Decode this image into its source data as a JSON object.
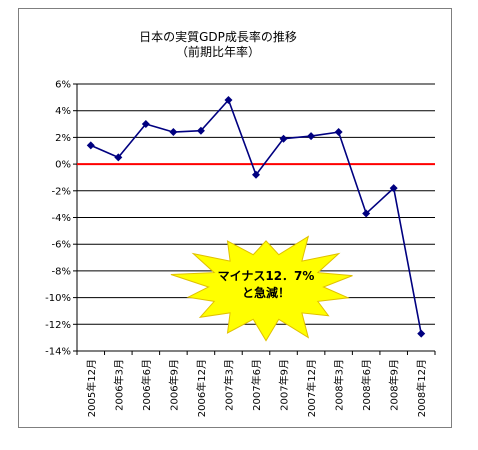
{
  "chart_data": {
    "type": "line",
    "title": "日本の実質GDP成長率の推移",
    "subtitle": "（前期比年率）",
    "categories": [
      "2005年12月",
      "2006年3月",
      "2006年6月",
      "2006年9月",
      "2006年12月",
      "2007年3月",
      "2007年6月",
      "2007年9月",
      "2007年12月",
      "2008年3月",
      "2008年6月",
      "2008年9月",
      "2008年12月"
    ],
    "series": [
      {
        "values": [
          1.4,
          0.5,
          3.0,
          2.4,
          2.5,
          4.8,
          -0.8,
          1.9,
          2.1,
          2.4,
          -3.7,
          -1.8,
          -12.7
        ]
      }
    ],
    "ylim": [
      -14,
      6
    ],
    "yticks": [
      "6%",
      "4%",
      "2%",
      "0%",
      "-2%",
      "-4%",
      "-6%",
      "-8%",
      "-10%",
      "-12%",
      "-14%"
    ],
    "ytick_values": [
      6,
      4,
      2,
      0,
      -2,
      -4,
      -6,
      -8,
      -10,
      -12,
      -14
    ],
    "grid": true,
    "zero_line_color": "#ff0000",
    "line_color": "#000080",
    "callout": {
      "lines": [
        "マイナス12．7%",
        "と急減！"
      ],
      "fill": "#ffff00"
    }
  }
}
